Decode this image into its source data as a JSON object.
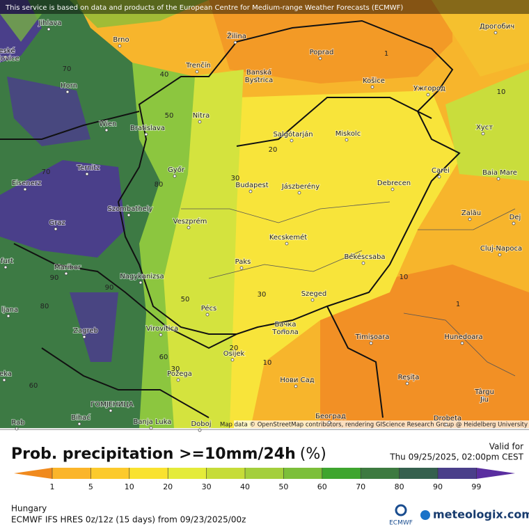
{
  "header": {
    "notice": "This service is based on data and products of the European Centre for Medium-range Weather Forecasts (ECMWF)"
  },
  "map": {
    "cities": [
      "Jihlava",
      "Brno",
      "Žilina",
      "Poprad",
      "Дрогобич",
      "Trenčín",
      [
        "Banská",
        "Bystrica"
      ],
      "Košice",
      "Ужгород",
      "Horn",
      "Nitra",
      "Wien",
      "Bratislava",
      "Salgótarján",
      "Miskolc",
      "Хуст",
      "Ternitz",
      "Győr",
      "Budapest",
      "Jászberény",
      "Debrecen",
      "Carei",
      "Baia Mare",
      "Eisenerz",
      "Szombathely",
      "Zalău",
      "Veszprém",
      "Graz",
      "Kecskemét",
      "Cluj-Napoca",
      "Paks",
      "Békéscsaba",
      "Maribor",
      "Nagykanizsa",
      "Szeged",
      "Pécs",
      "Zagreb",
      "Virovitica",
      [
        "Бачка",
        "Топола"
      ],
      "Timișoara",
      "Hunedoara",
      "Osijek",
      "Požega",
      "Нови Сад",
      "Reșița",
      [
        "Târgu",
        "Jiu"
      ],
      "ГОМЈЕНИЦА",
      "Bihać",
      "Banja Luka",
      "Doboj",
      "Београд",
      "Drobeta",
      [
        "eské",
        "ějovice"
      ],
      "furt",
      "ljana",
      "eka",
      "Rab",
      "Dej"
    ],
    "contour_labels": [
      "40",
      "50",
      "70",
      "20",
      "30",
      "80",
      "70",
      "90",
      "90",
      "80",
      "50",
      "30",
      "10",
      "1",
      "1",
      "10",
      "60",
      "30",
      "20",
      "10",
      "60"
    ],
    "credit": "Map data © OpenStreetMap contributors, rendering GIScience Research Group @ Heidelberg University"
  },
  "legend": {
    "title": "Prob. precipitation >=10mm/24h",
    "unit": "(%)",
    "valid_label": "Valid for",
    "valid_time": "Thu 09/25/2025, 02:00pm CEST",
    "ticks": [
      "1",
      "5",
      "10",
      "20",
      "30",
      "40",
      "50",
      "60",
      "70",
      "80",
      "90",
      "99"
    ],
    "colors": [
      "#f08a1e",
      "#fbb52a",
      "#fcca2c",
      "#f9e22f",
      "#e4eb3a",
      "#c6dc38",
      "#a4cf3c",
      "#7cbf3a",
      "#3ea52e",
      "#3d7a40",
      "#35604e",
      "#4a3f8a",
      "#5a2ea0"
    ]
  },
  "footer": {
    "region": "Hungary",
    "model": "ECMWF IFS HRES 0z/12z (15 days) from  09/23/2025/00z",
    "ecmwf": "ECMWF",
    "brand": "meteologix.com"
  }
}
